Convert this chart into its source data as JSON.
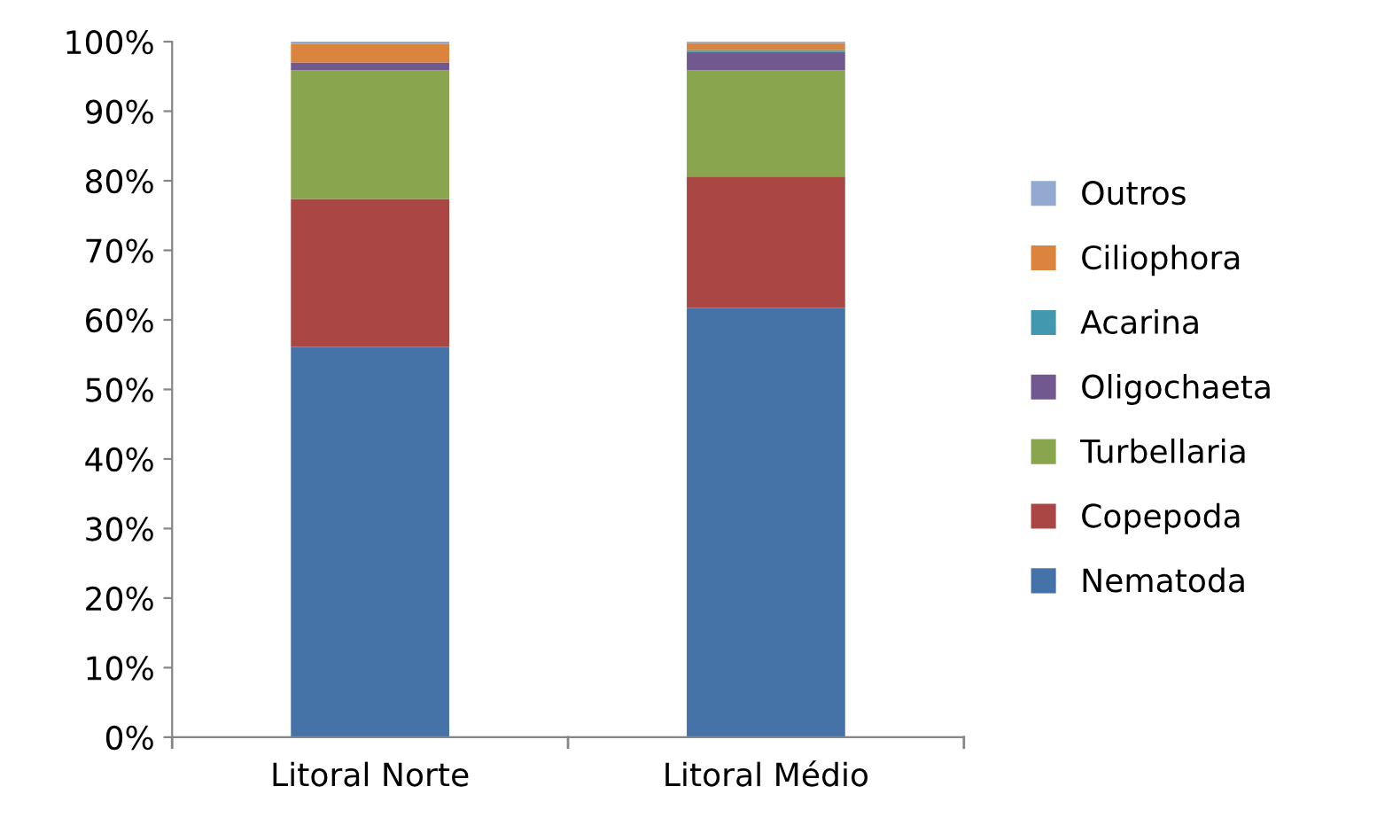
{
  "chart_data": {
    "type": "bar",
    "stacked": true,
    "categories": [
      "Litoral Norte",
      "Litoral Médio"
    ],
    "series": [
      {
        "name": "Nematoda",
        "color": "#4572a7",
        "values": [
          56.1,
          61.7
        ]
      },
      {
        "name": "Copepoda",
        "color": "#aa4643",
        "values": [
          21.3,
          18.9
        ]
      },
      {
        "name": "Turbellaria",
        "color": "#89a54e",
        "values": [
          18.5,
          15.3
        ]
      },
      {
        "name": "Oligochaeta",
        "color": "#71588f",
        "values": [
          1.1,
          2.6
        ]
      },
      {
        "name": "Acarina",
        "color": "#4198af",
        "values": [
          0.0,
          0.3
        ]
      },
      {
        "name": "Ciliophora",
        "color": "#db843d",
        "values": [
          2.7,
          1.0
        ]
      },
      {
        "name": "Outros",
        "color": "#93a9cf",
        "values": [
          0.3,
          0.2
        ]
      }
    ],
    "ylim": [
      0,
      100
    ],
    "yticks": [
      {
        "value": 0,
        "label": "0%"
      },
      {
        "value": 10,
        "label": "10%"
      },
      {
        "value": 20,
        "label": "20%"
      },
      {
        "value": 30,
        "label": "30%"
      },
      {
        "value": 40,
        "label": "40%"
      },
      {
        "value": 50,
        "label": "50%"
      },
      {
        "value": 60,
        "label": "60%"
      },
      {
        "value": 70,
        "label": "70%"
      },
      {
        "value": 80,
        "label": "80%"
      },
      {
        "value": 90,
        "label": "90%"
      },
      {
        "value": 100,
        "label": "100%"
      }
    ],
    "grid": false,
    "legend": "right"
  }
}
